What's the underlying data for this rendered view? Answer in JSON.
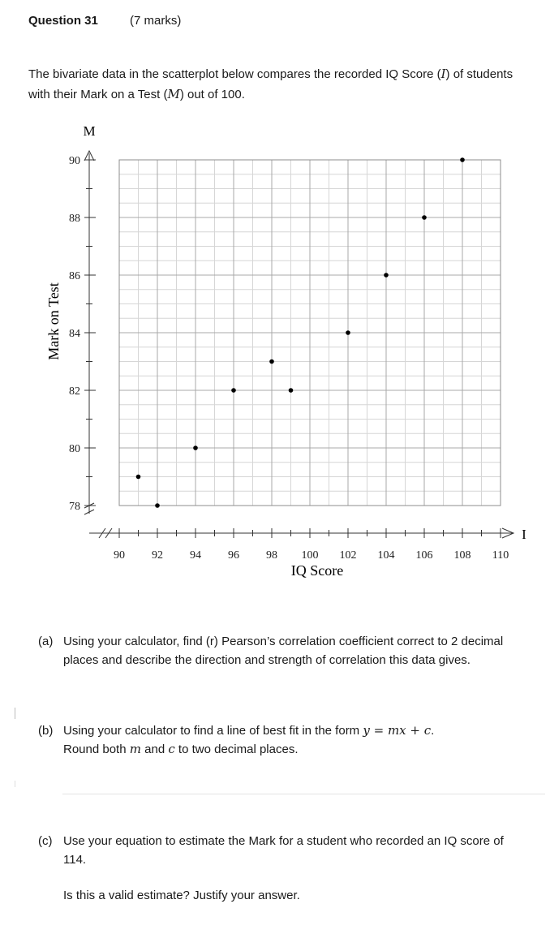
{
  "header": {
    "question": "Question 31",
    "marks": "(7 marks)"
  },
  "intro": {
    "part1": "The bivariate data in the scatterplot below compares the recorded IQ Score (",
    "var_i": "I",
    "part2": ") of students with their Mark on a Test (",
    "var_m": "M",
    "part3": ") out of 100."
  },
  "chart_data": {
    "type": "scatter",
    "xlabel": "IQ Score",
    "ylabel": "Mark on Test",
    "x_axis_letter": "I",
    "y_axis_letter": "M",
    "xlim": [
      89,
      109
    ],
    "ylim": [
      77.5,
      90
    ],
    "x_ticks": [
      90,
      92,
      94,
      96,
      98,
      100,
      102,
      104,
      106,
      108,
      110
    ],
    "y_ticks": [
      78,
      80,
      82,
      84,
      86,
      88,
      90
    ],
    "grid": true,
    "points": [
      {
        "x": 90,
        "y": 79
      },
      {
        "x": 91,
        "y": 78
      },
      {
        "x": 93,
        "y": 80
      },
      {
        "x": 95,
        "y": 82
      },
      {
        "x": 97,
        "y": 83
      },
      {
        "x": 98,
        "y": 82
      },
      {
        "x": 101,
        "y": 84
      },
      {
        "x": 103,
        "y": 86
      },
      {
        "x": 105,
        "y": 88
      },
      {
        "x": 107,
        "y": 90
      }
    ]
  },
  "parts": {
    "a": {
      "tag": "(a)",
      "text": "Using your calculator, find (r) Pearson’s correlation coefficient correct to 2 decimal places and describe the direction and strength of correlation this data gives."
    },
    "b": {
      "tag": "(b)",
      "text1": "Using your calculator to find a line of best fit in the form ",
      "formula": "y = mx + c",
      "text2": ".",
      "line2_a": "Round both ",
      "m": "m",
      "line2_b": " and ",
      "c": "c",
      "line2_c": " to two decimal places."
    },
    "c": {
      "tag": "(c)",
      "text": "Use your equation to estimate the Mark for a student who recorded an IQ score of 114.",
      "followup": "Is this a valid estimate? Justify your answer."
    }
  }
}
